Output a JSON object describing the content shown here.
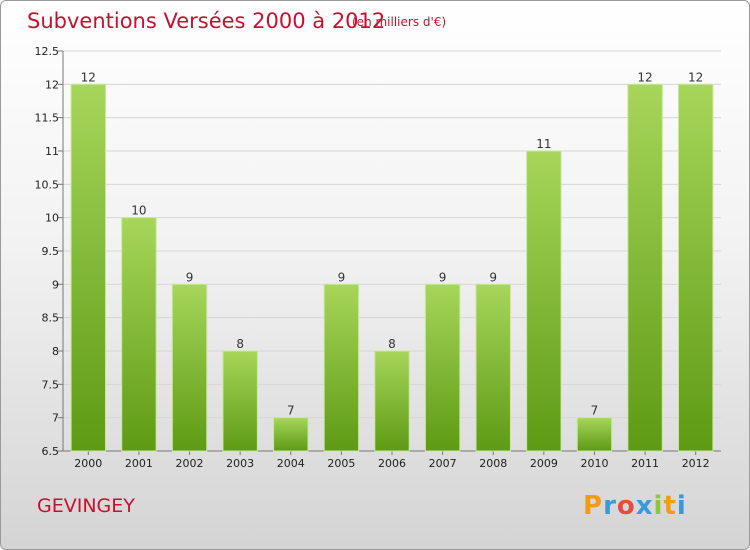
{
  "title": "Subventions Versées 2000 à 2012",
  "subtitle": "(en milliers d'€)",
  "commune": "GEVINGEY",
  "brand": {
    "letters": [
      "P",
      "r",
      "o",
      "x",
      "i",
      "t",
      "i"
    ],
    "colors": [
      "#f39c12",
      "#3a9ad9",
      "#e74c3c",
      "#3a9ad9",
      "#8dc63f",
      "#f39c12",
      "#3a9ad9"
    ]
  },
  "colors": {
    "bar_top": "#a6d65a",
    "bar_bottom": "#5e9a14",
    "title": "#c8102e"
  },
  "chart_data": {
    "type": "bar",
    "title": "Subventions Versées 2000 à 2012",
    "subtitle": "(en milliers d'€)",
    "xlabel": "",
    "ylabel": "",
    "categories": [
      "2000",
      "2001",
      "2002",
      "2003",
      "2004",
      "2005",
      "2006",
      "2007",
      "2008",
      "2009",
      "2010",
      "2011",
      "2012"
    ],
    "values": [
      12,
      10,
      9,
      8,
      7,
      9,
      8,
      9,
      9,
      11,
      7,
      12,
      12
    ],
    "data_labels": [
      "12",
      "10",
      "9",
      "8",
      "7",
      "9",
      "8",
      "9",
      "9",
      "11",
      "7",
      "12",
      "12"
    ],
    "ylim": [
      6.5,
      12.5
    ],
    "yticks": [
      "6.5",
      "7",
      "7.5",
      "8",
      "8.5",
      "9",
      "9.5",
      "10",
      "10.5",
      "11",
      "11.5",
      "12",
      "12.5"
    ],
    "grid": true,
    "legend": "none"
  }
}
